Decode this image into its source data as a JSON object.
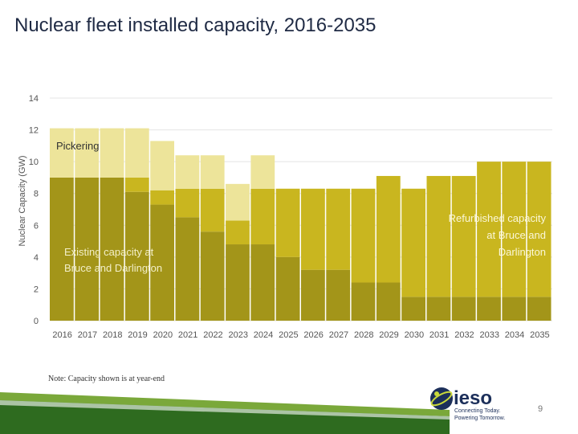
{
  "slide": {
    "title": "Nuclear fleet installed capacity, 2016-2035",
    "note": "Note: Capacity shown is at year-end",
    "page_number": "9"
  },
  "logo": {
    "name": "ieso",
    "tagline_1": "Connecting Today.",
    "tagline_2": "Powering Tomorrow."
  },
  "colors": {
    "existing": "#a39519",
    "refurbished": "#c9b61f",
    "pickering": "#ede49a",
    "title": "#1f2a44",
    "footer_green": "#2e6b1f"
  },
  "chart_data": {
    "type": "bar",
    "stacked": true,
    "title": "Nuclear fleet installed capacity, 2016-2035",
    "ylabel": "Nuclear Capacity (GW)",
    "xlabel": "",
    "ylim": [
      0,
      14
    ],
    "yticks": [
      "0",
      "2",
      "4",
      "6",
      "8",
      "10",
      "12",
      "14"
    ],
    "categories": [
      "2016",
      "2017",
      "2018",
      "2019",
      "2020",
      "2021",
      "2022",
      "2023",
      "2024",
      "2025",
      "2026",
      "2027",
      "2028",
      "2029",
      "2030",
      "2031",
      "2032",
      "2033",
      "2034",
      "2035"
    ],
    "series": [
      {
        "name": "Existing capacity at Bruce and Darlington",
        "values": [
          9.0,
          9.0,
          9.0,
          8.1,
          7.3,
          6.5,
          5.6,
          4.8,
          4.8,
          4.0,
          3.2,
          3.2,
          2.4,
          2.4,
          1.5,
          1.5,
          1.5,
          1.5,
          1.5,
          1.5
        ]
      },
      {
        "name": "Refurbished capacity at Bruce and Darlington",
        "values": [
          0,
          0,
          0,
          0.9,
          0.9,
          1.8,
          2.7,
          1.5,
          3.5,
          4.3,
          5.1,
          5.1,
          5.9,
          6.7,
          6.8,
          7.6,
          7.6,
          8.5,
          8.5,
          8.5
        ]
      },
      {
        "name": "Pickering",
        "values": [
          3.1,
          3.1,
          3.1,
          3.1,
          3.1,
          2.1,
          2.1,
          2.3,
          2.1,
          0,
          0,
          0,
          0,
          0,
          0,
          0,
          0,
          0,
          0,
          0
        ]
      }
    ],
    "annotations": {
      "pickering": "Pickering",
      "existing_1": "Existing capacity at",
      "existing_2": "Bruce and Darlington",
      "refurb_1": "Refurbished capacity",
      "refurb_2": "at Bruce and",
      "refurb_3": "Darlington"
    },
    "grid": true,
    "legend": "none"
  }
}
